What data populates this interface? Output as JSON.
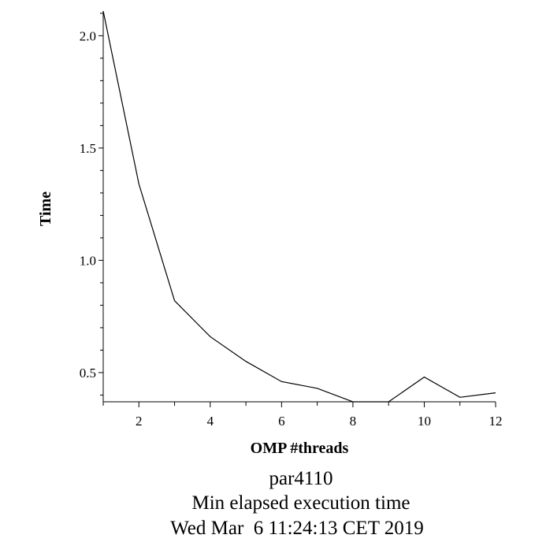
{
  "chart_data": {
    "type": "line",
    "title_lines": [
      "par4110",
      "Min elapsed execution time",
      "Wed Mar  6 11:24:13 CET 2019"
    ],
    "xlabel": "OMP #threads",
    "ylabel": "Time",
    "xlim": [
      1,
      12
    ],
    "ylim": [
      0.37,
      2.11
    ],
    "grid": false,
    "x_ticks": [
      2,
      4,
      6,
      8,
      10,
      12
    ],
    "x_tick_labels": [
      "2",
      "4",
      "6",
      "8",
      "10",
      "12"
    ],
    "y_ticks": [
      0.5,
      1.0,
      1.5,
      2.0
    ],
    "y_tick_labels": [
      "0.5",
      "1.0",
      "1.5",
      "2.0"
    ],
    "series": [
      {
        "x": [
          1,
          2,
          3,
          4,
          5,
          6,
          7,
          8,
          9,
          10,
          11,
          12
        ],
        "values": [
          2.11,
          1.34,
          0.82,
          0.66,
          0.55,
          0.46,
          0.43,
          0.37,
          0.37,
          0.48,
          0.39,
          0.41
        ],
        "color": "#000000"
      }
    ]
  }
}
